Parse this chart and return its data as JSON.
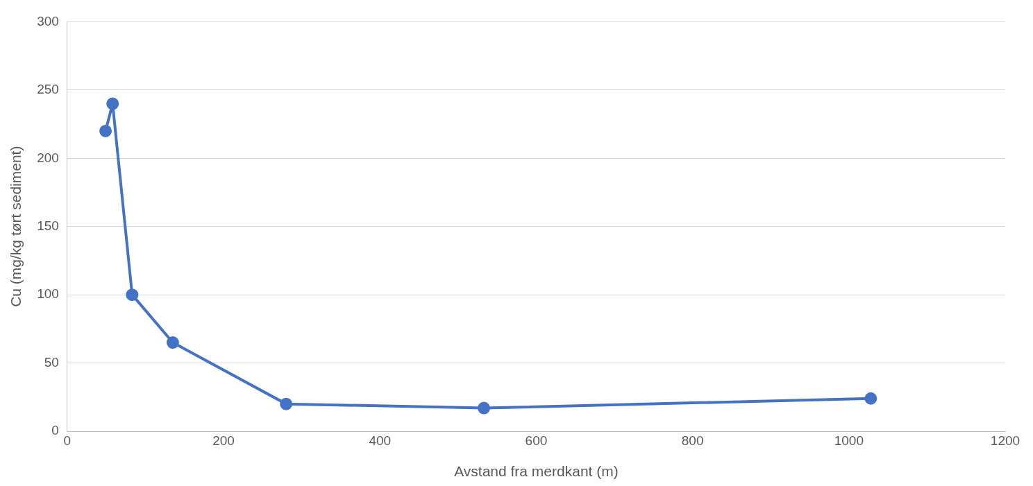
{
  "chart_data": {
    "type": "line",
    "xlabel": "Avstand fra merdkant (m)",
    "ylabel": "Cu (mg/kg tørt sediment)",
    "x": [
      49,
      58,
      83,
      135,
      280,
      533,
      1028
    ],
    "series": [
      {
        "color": "#4472c4",
        "values": [
          220,
          240,
          100,
          65,
          20,
          17,
          24
        ]
      }
    ],
    "xlim": [
      0,
      1200
    ],
    "xticks": [
      0,
      200,
      400,
      600,
      800,
      1000,
      1200
    ],
    "ylim": [
      0,
      300
    ],
    "yticks": [
      0,
      50,
      100,
      150,
      200,
      250,
      300
    ],
    "grid": "y",
    "legend": false,
    "marker": "circle",
    "line_style": "solid"
  }
}
